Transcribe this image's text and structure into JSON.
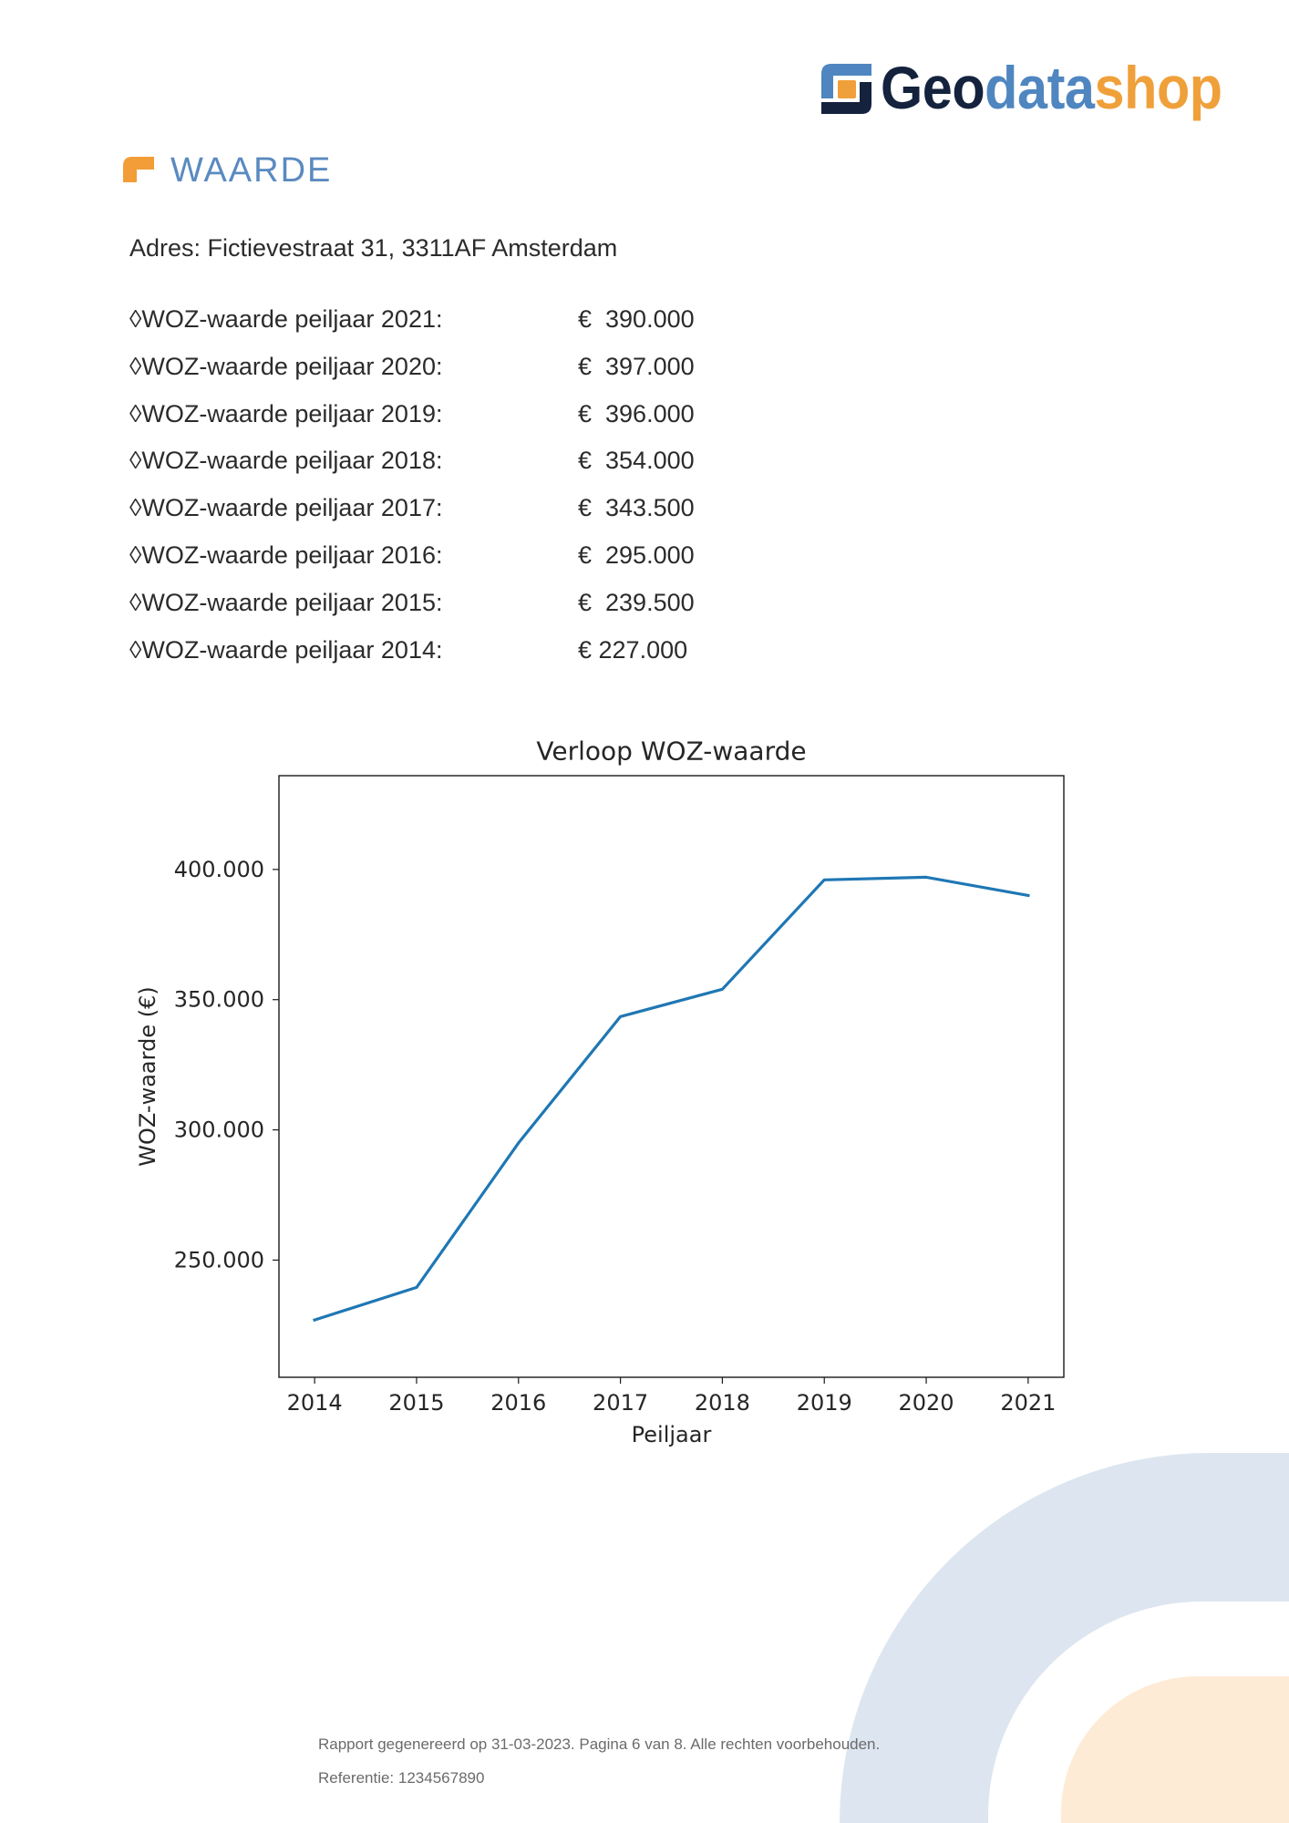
{
  "logo": {
    "part1": "Geo",
    "part2": "data",
    "part3": "shop",
    "icon": "geodatashop-logo-icon"
  },
  "section": {
    "title": "WAARDE",
    "icon": "section-corner-icon"
  },
  "address": "Adres: Fictievestraat 31, 3311AF Amsterdam",
  "woz_rows": [
    {
      "label": "◊WOZ-waarde peiljaar 2021:",
      "value": "€  390.000"
    },
    {
      "label": "◊WOZ-waarde peiljaar 2020:",
      "value": "€  397.000"
    },
    {
      "label": "◊WOZ-waarde peiljaar 2019:",
      "value": "€  396.000"
    },
    {
      "label": "◊WOZ-waarde peiljaar 2018:",
      "value": "€  354.000"
    },
    {
      "label": "◊WOZ-waarde peiljaar 2017:",
      "value": "€  343.500"
    },
    {
      "label": "◊WOZ-waarde peiljaar 2016:",
      "value": "€  295.000"
    },
    {
      "label": "◊WOZ-waarde peiljaar 2015:",
      "value": "€  239.500"
    },
    {
      "label": "◊WOZ-waarde peiljaar 2014:",
      "value": "€ 227.000"
    }
  ],
  "chart_data": {
    "type": "line",
    "title": "Verloop WOZ-waarde",
    "xlabel": "Peiljaar",
    "ylabel": "WOZ-waarde (€)",
    "x": [
      2014,
      2015,
      2016,
      2017,
      2018,
      2019,
      2020,
      2021
    ],
    "xticks": [
      "2014",
      "2015",
      "2016",
      "2017",
      "2018",
      "2019",
      "2020",
      "2021"
    ],
    "series": [
      {
        "values": [
          227000,
          239500,
          295000,
          343500,
          354000,
          396000,
          397000,
          390000
        ]
      }
    ],
    "yticks": [
      {
        "value": 250000,
        "label": "250.000"
      },
      {
        "value": 300000,
        "label": "300.000"
      },
      {
        "value": 350000,
        "label": "350.000"
      },
      {
        "value": 400000,
        "label": "400.000"
      }
    ],
    "xlim": [
      2013.65,
      2021.35
    ],
    "ylim": [
      205000,
      436000
    ],
    "grid": false,
    "legend": false
  },
  "footer": {
    "line1": "Rapport gegenereerd op 31-03-2023. Pagina 6 van 8. Alle rechten voorbehouden.",
    "line2": "Referentie: 1234567890"
  },
  "colors": {
    "navy": "#14223d",
    "brand_blue": "#4f86c0",
    "brand_orange": "#f0a03a",
    "heading_blue": "#5a8ac0",
    "series_line": "#1f77b4",
    "decor_blue": "#dde6f0",
    "decor_orange": "#fdebd6"
  }
}
